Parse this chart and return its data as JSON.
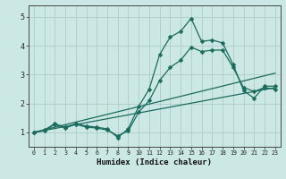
{
  "xlabel": "Humidex (Indice chaleur)",
  "xlim": [
    -0.5,
    23.5
  ],
  "ylim": [
    0.5,
    5.4
  ],
  "xticks": [
    0,
    1,
    2,
    3,
    4,
    5,
    6,
    7,
    8,
    9,
    10,
    11,
    12,
    13,
    14,
    15,
    16,
    17,
    18,
    19,
    20,
    21,
    22,
    23
  ],
  "yticks": [
    1,
    2,
    3,
    4,
    5
  ],
  "bg_color": "#cce8e4",
  "line_color": "#1a6b5e",
  "grid_major_color": "#b0ccc8",
  "grid_minor_color": "#c4dedb",
  "lines_with_markers": [
    {
      "x": [
        0,
        1,
        2,
        3,
        4,
        5,
        6,
        7,
        8,
        9,
        10,
        11,
        12,
        13,
        14,
        15,
        16,
        17,
        18,
        19,
        20,
        21,
        22,
        23
      ],
      "y": [
        1.0,
        1.08,
        1.3,
        1.18,
        1.3,
        1.22,
        1.18,
        1.12,
        0.82,
        1.12,
        1.9,
        2.5,
        3.7,
        4.3,
        4.5,
        4.95,
        4.15,
        4.2,
        4.1,
        3.35,
        2.45,
        2.18,
        2.6,
        2.6
      ]
    },
    {
      "x": [
        0,
        1,
        2,
        3,
        4,
        5,
        6,
        7,
        8,
        9,
        10,
        11,
        12,
        13,
        14,
        15,
        16,
        17,
        18,
        19,
        20,
        21,
        22,
        23
      ],
      "y": [
        1.0,
        1.05,
        1.28,
        1.15,
        1.28,
        1.18,
        1.15,
        1.08,
        0.88,
        1.05,
        1.7,
        2.1,
        2.8,
        3.25,
        3.5,
        3.95,
        3.8,
        3.85,
        3.85,
        3.25,
        2.55,
        2.42,
        2.55,
        2.5
      ]
    }
  ],
  "lines_straight": [
    {
      "x": [
        0,
        23
      ],
      "y": [
        1.0,
        3.05
      ]
    },
    {
      "x": [
        0,
        23
      ],
      "y": [
        1.0,
        2.55
      ]
    }
  ]
}
